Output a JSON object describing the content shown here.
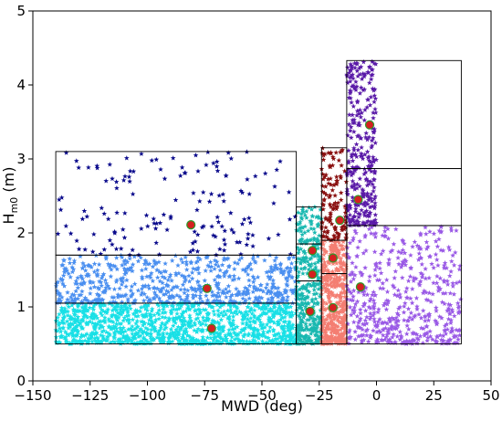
{
  "chart_data": {
    "type": "scatter",
    "title": "",
    "xlabel": "MWD (deg)",
    "ylabel_main": "H",
    "ylabel_sub": "m0",
    "ylabel_unit": " (m)",
    "xlim": [
      -150,
      50
    ],
    "ylim": [
      0,
      5
    ],
    "xticks": [
      -150,
      -125,
      -100,
      -75,
      -50,
      -25,
      0,
      25,
      50
    ],
    "yticks": [
      0,
      1,
      2,
      3,
      4,
      5
    ],
    "grid": false,
    "legend": "none",
    "colors": {
      "navy": "#0a0a8c",
      "cornflower": "#4a8ff0",
      "cyan": "#18e0e6",
      "teal": "#19b8b0",
      "salmon": "#f47e72",
      "darkred": "#8a1010",
      "purple": "#5a1aa8",
      "medpurple": "#9a5ae6",
      "center": "#d42020",
      "center_edge": "#2a9a2a"
    },
    "clusters": [
      {
        "name": "",
        "color": "navy",
        "xrange": [
          -140,
          -35
        ],
        "yrange": [
          1.7,
          3.1
        ],
        "n": 150
      },
      {
        "name": "",
        "color": "cornflower",
        "xrange": [
          -140,
          -35
        ],
        "yrange": [
          1.05,
          1.7
        ],
        "n": 650
      },
      {
        "name": "",
        "color": "cyan",
        "xrange": [
          -140,
          -35
        ],
        "yrange": [
          0.5,
          1.05
        ],
        "n": 1100
      },
      {
        "name": "",
        "color": "teal",
        "xrange": [
          -35,
          -24
        ],
        "yrange": [
          0.5,
          2.35
        ],
        "n": 350
      },
      {
        "name": "",
        "color": "salmon",
        "xrange": [
          -24,
          -13
        ],
        "yrange": [
          0.5,
          1.9
        ],
        "n": 450
      },
      {
        "name": "",
        "color": "darkred",
        "xrange": [
          -24,
          -13
        ],
        "yrange": [
          1.9,
          3.15
        ],
        "n": 120
      },
      {
        "name": "",
        "color": "purple",
        "xrange": [
          -13,
          0
        ],
        "yrange": [
          2.1,
          4.33
        ],
        "n": 300
      },
      {
        "name": "",
        "color": "medpurple",
        "xrange": [
          -13,
          37
        ],
        "yrange": [
          0.5,
          2.1
        ],
        "n": 500
      }
    ],
    "boxes": [
      {
        "x0": -140,
        "x1": -35,
        "y0": 0.5,
        "y1": 1.05
      },
      {
        "x0": -140,
        "x1": -35,
        "y0": 1.05,
        "y1": 1.7
      },
      {
        "x0": -140,
        "x1": -35,
        "y0": 1.7,
        "y1": 3.1
      },
      {
        "x0": -35,
        "x1": -24,
        "y0": 0.5,
        "y1": 1.35
      },
      {
        "x0": -35,
        "x1": -24,
        "y0": 1.35,
        "y1": 1.85
      },
      {
        "x0": -35,
        "x1": -24,
        "y0": 1.85,
        "y1": 2.35
      },
      {
        "x0": -24,
        "x1": -13,
        "y0": 0.5,
        "y1": 1.45
      },
      {
        "x0": -24,
        "x1": -13,
        "y0": 1.45,
        "y1": 1.9
      },
      {
        "x0": -24,
        "x1": -13,
        "y0": 1.9,
        "y1": 3.15
      },
      {
        "x0": -13,
        "x1": 37,
        "y0": 0.5,
        "y1": 2.1
      },
      {
        "x0": -13,
        "x1": 37,
        "y0": 2.1,
        "y1": 2.87
      },
      {
        "x0": -13,
        "x1": 37,
        "y0": 2.87,
        "y1": 4.33
      }
    ],
    "centers": [
      {
        "x": -81,
        "y": 2.11
      },
      {
        "x": -74,
        "y": 1.25
      },
      {
        "x": -72,
        "y": 0.71
      },
      {
        "x": -28,
        "y": 1.76
      },
      {
        "x": -28,
        "y": 1.44
      },
      {
        "x": -29,
        "y": 0.94
      },
      {
        "x": -19,
        "y": 0.99
      },
      {
        "x": -19,
        "y": 1.66
      },
      {
        "x": -16,
        "y": 2.17
      },
      {
        "x": -8,
        "y": 2.45
      },
      {
        "x": -7,
        "y": 1.27
      },
      {
        "x": -3,
        "y": 3.46
      }
    ]
  }
}
